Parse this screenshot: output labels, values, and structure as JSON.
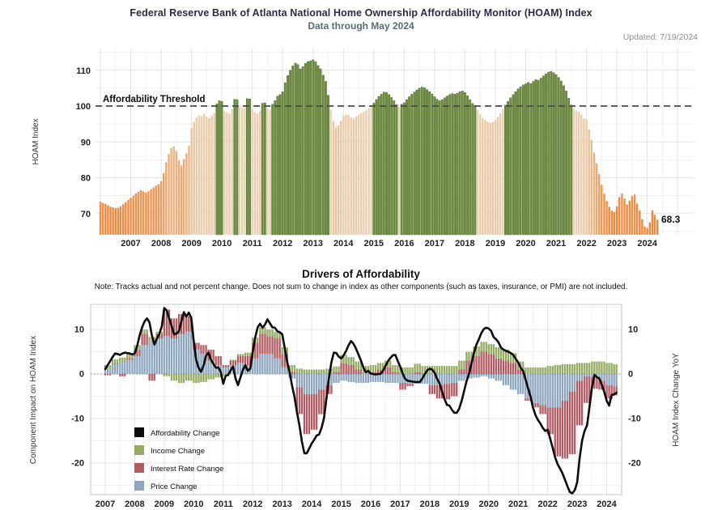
{
  "header": {
    "title": "Federal Reserve Bank of Atlanta National Home Ownership Affordability Monitor (HOAM) Index",
    "subtitle": "Data through May 2024",
    "updated": "Updated: 7/19/2024"
  },
  "chart_data": [
    {
      "type": "bar",
      "name": "HOAM Index",
      "ylabel": "HOAM Index",
      "frequency": "monthly",
      "start_month": "2006-01",
      "end_month": "2024-05",
      "y_ticks": [
        70,
        80,
        90,
        100,
        110
      ],
      "ylim": [
        64,
        115
      ],
      "x_tick_years": [
        2007,
        2008,
        2009,
        2010,
        2011,
        2012,
        2013,
        2014,
        2015,
        2016,
        2017,
        2018,
        2019,
        2020,
        2021,
        2022,
        2023,
        2024
      ],
      "threshold": {
        "value": 100,
        "label": "Affordability Threshold"
      },
      "last_value": 68.3,
      "last_value_label": "68.3",
      "grid": true,
      "colors": {
        "above_threshold": "#6f8e3f",
        "above_threshold_edge": "#4d682a",
        "below_near_threshold": "#e8d3b6",
        "below_far_threshold": "#ee8a3e"
      },
      "values": [
        73.3,
        73.0,
        72.7,
        72.3,
        71.9,
        71.7,
        71.5,
        71.6,
        72.0,
        72.6,
        73.2,
        73.8,
        74.4,
        75.0,
        75.6,
        76.1,
        76.5,
        76.2,
        75.8,
        76.2,
        76.8,
        77.3,
        77.8,
        78.2,
        79.0,
        81.3,
        84.3,
        86.6,
        88.3,
        88.7,
        87.4,
        84.8,
        83.4,
        85.2,
        86.8,
        88.9,
        93.8,
        95.6,
        96.8,
        97.4,
        97.2,
        97.8,
        97.0,
        96.6,
        97.3,
        98.1,
        100.6,
        101.5,
        101.3,
        98.7,
        98.2,
        97.9,
        99.1,
        101.9,
        101.8,
        99.8,
        99.6,
        99.5,
        102.1,
        102.0,
        99.1,
        98.3,
        98.0,
        98.7,
        100.8,
        100.9,
        99.3,
        99.0,
        100.5,
        101.5,
        102.8,
        103.2,
        104.0,
        106.5,
        108.5,
        110.0,
        111.2,
        112.0,
        111.6,
        110.4,
        111.0,
        111.9,
        112.4,
        112.6,
        112.9,
        112.4,
        111.3,
        110.4,
        108.6,
        106.9,
        103.0,
        98.9,
        95.8,
        94.1,
        94.6,
        95.9,
        97.3,
        97.6,
        97.5,
        96.8,
        96.5,
        97.0,
        97.5,
        98.0,
        98.4,
        98.9,
        99.3,
        99.8,
        100.8,
        101.8,
        102.7,
        103.3,
        103.9,
        103.8,
        103.2,
        102.4,
        101.5,
        100.4,
        99.7,
        100.5,
        100.9,
        101.8,
        102.6,
        103.3,
        103.9,
        104.5,
        105.0,
        105.3,
        105.1,
        104.6,
        104.0,
        103.4,
        102.6,
        101.9,
        101.5,
        101.8,
        102.3,
        102.8,
        103.2,
        103.5,
        103.3,
        103.6,
        104.0,
        104.2,
        103.8,
        102.9,
        101.8,
        100.7,
        100.2,
        98.9,
        97.6,
        96.6,
        96.2,
        95.6,
        95.3,
        95.5,
        96.0,
        96.9,
        98.0,
        99.1,
        100.3,
        101.3,
        102.3,
        103.2,
        104.0,
        104.8,
        105.4,
        105.9,
        106.2,
        106.6,
        106.3,
        106.9,
        107.4,
        107.2,
        107.8,
        108.4,
        109.0,
        109.5,
        109.7,
        109.3,
        108.8,
        108.0,
        107.0,
        105.7,
        104.2,
        102.2,
        100.3,
        99.2,
        98.7,
        98.4,
        97.6,
        96.5,
        96.3,
        93.5,
        90.5,
        87.0,
        84.0,
        81.0,
        78.0,
        75.5,
        73.5,
        71.9,
        70.8,
        70.4,
        72.0,
        74.6,
        75.6,
        74.2,
        72.5,
        73.6,
        74.9,
        75.3,
        72.8,
        70.9,
        68.4,
        66.4,
        66.0,
        67.5,
        70.9,
        69.6,
        68.3
      ]
    },
    {
      "type": "stacked-bar-with-line",
      "title": "Drivers of Affordability",
      "note": "Note: Tracks actual and not percent change. Does not sum to change in index as other components (such as taxes, insurance, or PMI) are not included.",
      "ylabel_left": "Component Impact on HOAM Index",
      "ylabel_right": "HOAM Index Change YoY",
      "y_ticks": [
        10,
        0,
        -10,
        -20
      ],
      "ylim": [
        -27,
        15.5
      ],
      "x_tick_years": [
        2007,
        2008,
        2009,
        2010,
        2011,
        2012,
        2013,
        2014,
        2015,
        2016,
        2017,
        2018,
        2019,
        2020,
        2021,
        2022,
        2023,
        2024
      ],
      "frequency": "quarterly",
      "start_quarter": "2007-Q1",
      "end_quarter": "2024-Q2",
      "grid": true,
      "line": {
        "name": "Affordability Change",
        "color": "#0d0d0d",
        "definition": "HOAM Index year-over-year change, monthly, derived from HOAM Index values",
        "axis": "right"
      },
      "legend": [
        "Affordability Change",
        "Income Change",
        "Interest Rate Change",
        "Price Change"
      ],
      "series": [
        {
          "name": "Income Change",
          "color": "#93ab62",
          "values": [
            0.8,
            0.9,
            0.9,
            1.0,
            1.0,
            1.0,
            0.8,
            0.5,
            -0.5,
            -1.5,
            -2.0,
            -1.5,
            -2.0,
            -1.8,
            -1.2,
            -0.8,
            -0.5,
            0.2,
            0.5,
            0.8,
            1.2,
            1.5,
            1.5,
            1.5,
            1.5,
            1.5,
            1.2,
            1.0,
            1.0,
            1.0,
            1.2,
            1.2,
            1.8,
            1.8,
            1.8,
            1.8,
            1.5,
            1.5,
            1.5,
            1.5,
            1.5,
            1.5,
            1.8,
            1.8,
            1.8,
            1.8,
            1.8,
            1.8,
            2.0,
            2.0,
            2.2,
            2.2,
            2.2,
            2.5,
            2.5,
            2.2,
            1.8,
            1.5,
            1.5,
            1.5,
            1.8,
            2.0,
            2.2,
            2.2,
            2.5,
            2.5,
            2.8,
            2.8,
            2.5,
            2.2
          ]
        },
        {
          "name": "Interest Rate Change",
          "color": "#b15c63",
          "values": [
            -0.3,
            0.2,
            -0.5,
            0.4,
            1.5,
            2.5,
            -1.5,
            1.0,
            6.0,
            4.5,
            4.5,
            3.5,
            1.5,
            2.0,
            2.5,
            2.0,
            0.5,
            1.0,
            1.5,
            2.0,
            3.5,
            4.5,
            4.0,
            4.5,
            3.0,
            0.5,
            -6.0,
            -9.0,
            -8.0,
            -5.5,
            -2.0,
            0.5,
            2.5,
            2.0,
            1.0,
            0.0,
            0.5,
            1.0,
            1.5,
            0.5,
            -1.5,
            -0.5,
            0.5,
            0.0,
            -2.0,
            -3.0,
            -3.5,
            -3.0,
            1.0,
            3.0,
            4.0,
            5.0,
            4.5,
            3.5,
            3.0,
            2.5,
            1.0,
            -0.5,
            -1.0,
            -2.0,
            -6.0,
            -11.0,
            -13.0,
            -14.0,
            -10.0,
            -6.0,
            -2.5,
            -2.0,
            -3.0,
            -2.0
          ]
        },
        {
          "name": "Price Change",
          "color": "#8ca6bd",
          "values": [
            1.2,
            2.2,
            2.8,
            3.2,
            4.0,
            6.5,
            7.5,
            8.0,
            8.5,
            8.0,
            9.0,
            9.5,
            5.5,
            4.5,
            3.0,
            2.0,
            1.5,
            2.0,
            2.5,
            2.0,
            3.5,
            4.5,
            4.5,
            3.5,
            1.5,
            -1.0,
            -3.0,
            -4.5,
            -4.5,
            -3.5,
            -2.5,
            -2.0,
            -1.5,
            -1.8,
            -2.0,
            -2.0,
            -1.8,
            -1.8,
            -2.0,
            -2.0,
            -2.0,
            -2.2,
            -2.2,
            -2.2,
            -2.5,
            -2.5,
            -2.2,
            -2.0,
            -1.5,
            -1.0,
            -0.8,
            -0.5,
            -1.0,
            -1.5,
            -2.5,
            -3.5,
            -4.5,
            -5.5,
            -6.5,
            -7.0,
            -7.5,
            -7.5,
            -6.0,
            -4.0,
            -1.5,
            -0.5,
            -0.8,
            -1.5,
            -2.5,
            -2.8
          ]
        }
      ]
    }
  ]
}
